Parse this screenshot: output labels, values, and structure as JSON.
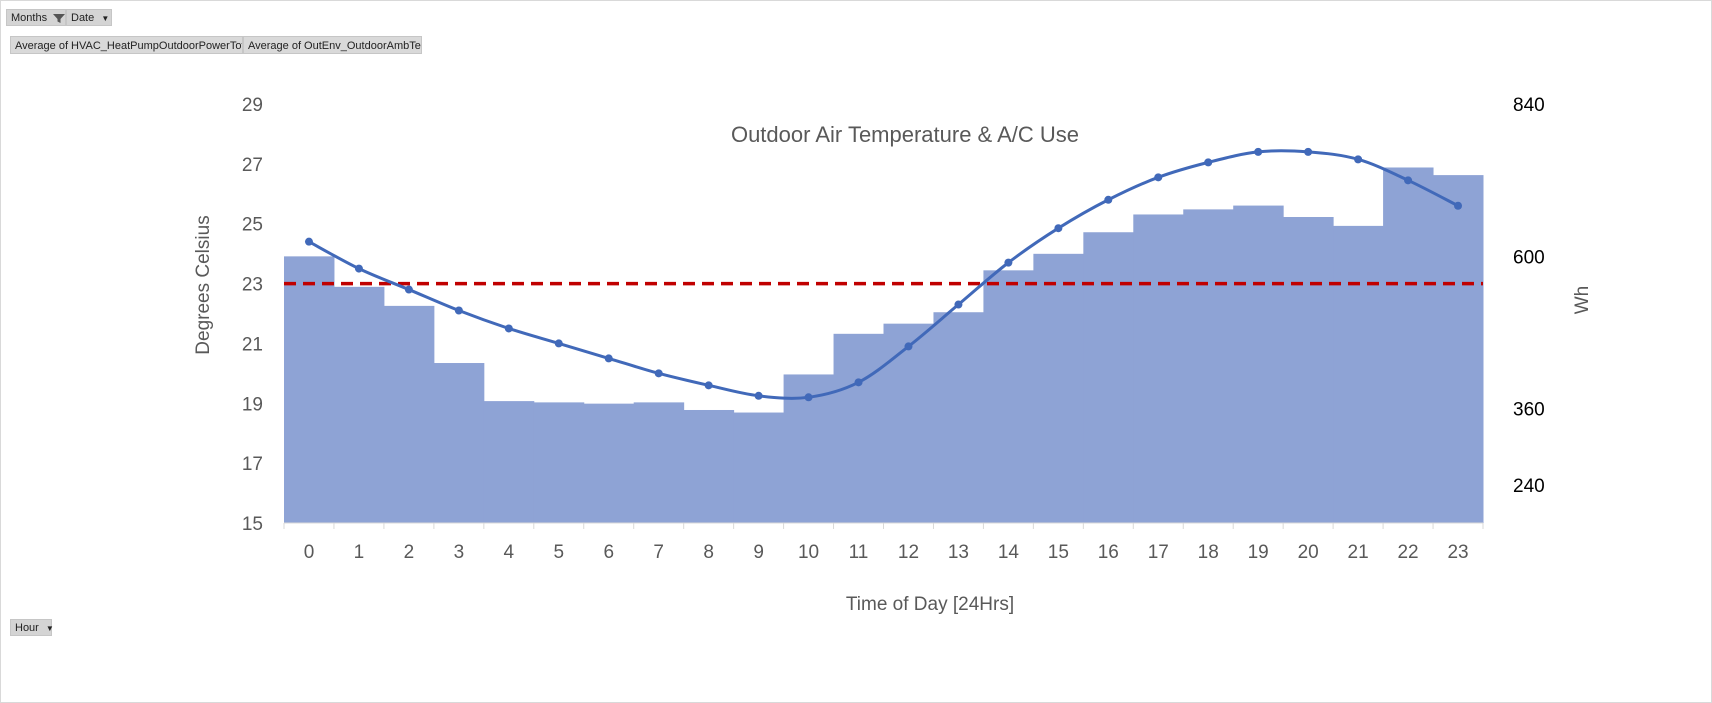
{
  "filters": {
    "months_label": "Months",
    "date_label": "Date",
    "hour_label": "Hour"
  },
  "values_fields": [
    "Average of HVAC_HeatPumpOutdoorPowerTotal_J",
    "Average of OutEnv_OutdoorAmbTemp"
  ],
  "chart_data": {
    "type": "bar+line",
    "title": "Outdoor Air Temperature & A/C Use",
    "xlabel": "Time of Day [24Hrs]",
    "ylabel_left": "Degrees Celsius",
    "ylabel_right": "Wh",
    "categories": [
      "0",
      "1",
      "2",
      "3",
      "4",
      "5",
      "6",
      "7",
      "8",
      "9",
      "10",
      "11",
      "12",
      "13",
      "14",
      "15",
      "16",
      "17",
      "18",
      "19",
      "20",
      "21",
      "22",
      "23"
    ],
    "y_left": {
      "min": 15,
      "max": 29,
      "ticks": [
        15,
        17,
        19,
        21,
        23,
        25,
        27,
        29
      ]
    },
    "y_right": {
      "min": 180,
      "max": 840,
      "ticks": [
        240,
        360,
        600,
        840
      ]
    },
    "series": [
      {
        "kind": "bar",
        "axis": "right",
        "color": "#8ea3d5",
        "values": [
          600,
          552,
          522,
          432,
          372,
          370,
          368,
          370,
          358,
          354,
          414,
          478,
          494,
          512,
          578,
          604,
          638,
          666,
          674,
          680,
          662,
          648,
          740,
          728
        ]
      },
      {
        "kind": "line",
        "axis": "left",
        "color": "#4169b9",
        "values": [
          24.4,
          23.5,
          22.8,
          22.1,
          21.5,
          21.0,
          20.5,
          20.0,
          19.6,
          19.25,
          19.2,
          19.7,
          20.9,
          22.3,
          23.7,
          24.85,
          25.8,
          26.55,
          27.05,
          27.4,
          27.4,
          27.15,
          26.45,
          25.6
        ]
      }
    ],
    "reference_line": {
      "value": 23,
      "axis": "left",
      "color": "#c00000",
      "style": "dashed"
    }
  }
}
